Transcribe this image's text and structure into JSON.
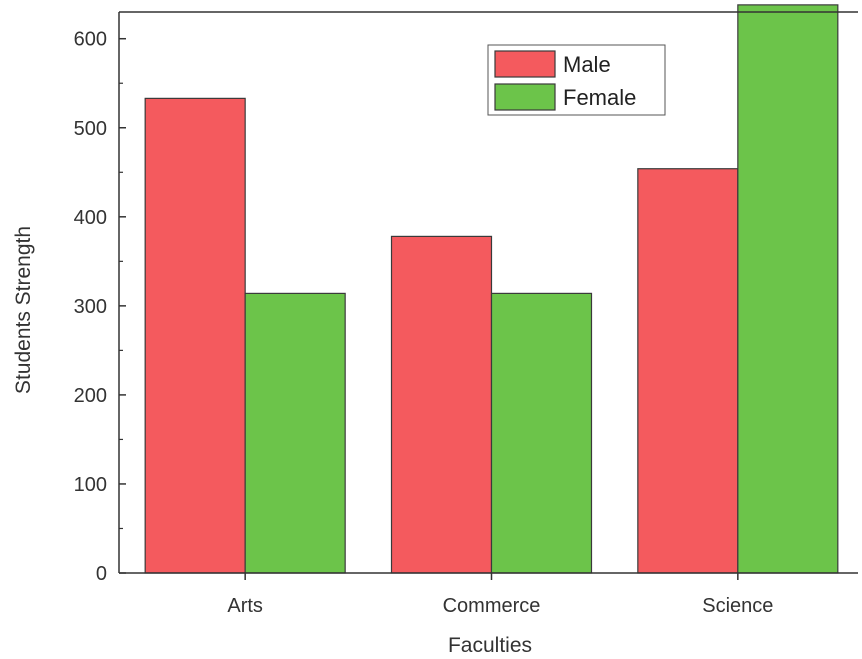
{
  "chart_data": {
    "type": "bar",
    "title": "",
    "xlabel": "Faculties",
    "ylabel": "Students Strength",
    "categories": [
      "Arts",
      "Commerce",
      "Science"
    ],
    "series": [
      {
        "name": "Male",
        "values": [
          533,
          378,
          454
        ],
        "color": "#f45a5e"
      },
      {
        "name": "Female",
        "values": [
          314,
          314,
          638
        ],
        "color": "#6cc44a"
      }
    ],
    "ylim": [
      0,
      630
    ],
    "yticks": [
      0,
      100,
      200,
      300,
      400,
      500,
      600
    ],
    "grid": false,
    "legend_position": "top-right"
  }
}
